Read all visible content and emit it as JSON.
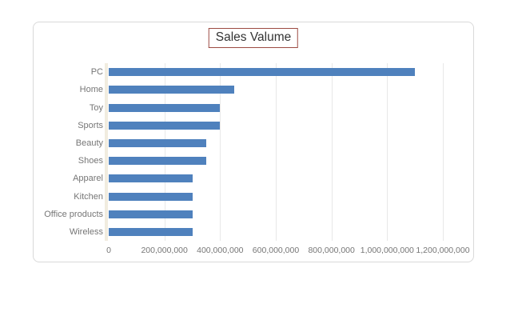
{
  "chart_data": {
    "type": "bar",
    "orientation": "horizontal",
    "title": "Sales Valume",
    "categories": [
      "PC",
      "Home",
      "Toy",
      "Sports",
      "Beauty",
      "Shoes",
      "Apparel",
      "Kitchen",
      "Office products",
      "Wireless"
    ],
    "values": [
      1100000000,
      450000000,
      400000000,
      400000000,
      350000000,
      350000000,
      300000000,
      300000000,
      300000000,
      300000000
    ],
    "xlim": [
      0,
      1200000000
    ],
    "x_tick_labels": [
      "0",
      "200,000,000",
      "400,000,000",
      "600,000,000",
      "800,000,000",
      "1,000,000,000",
      "1,200,000,000"
    ],
    "grid": true,
    "legend": "none",
    "colors": {
      "bar": "#4f81bd",
      "gridline": "#e8e8e8",
      "axis_text": "#767676",
      "title_text": "#333333",
      "title_border": "#9c4b42",
      "frame_border": "#d9d9d9",
      "axis_strip": "#f1ecdf"
    }
  }
}
